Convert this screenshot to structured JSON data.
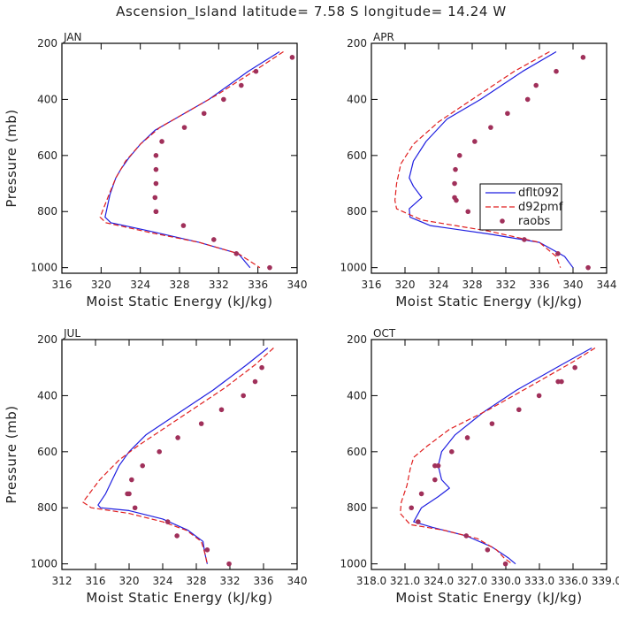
{
  "figure_title": "Ascension_Island  latitude= 7.58 S longitude= 14.24 W",
  "colors": {
    "dflt092": "#1f1fe0",
    "d92pmf": "#e01f1f",
    "raobs": "#a0305a",
    "frame": "#000000"
  },
  "chart_data": [
    {
      "type": "line",
      "panel": "JAN",
      "xlabel": "Moist Static Energy (kJ/kg)",
      "ylabel": "Pressure (mb)",
      "xlim": [
        316,
        340
      ],
      "ylim": [
        1020,
        200
      ],
      "xticks": [
        316,
        320,
        324,
        328,
        332,
        336,
        340
      ],
      "xtick_labels": [
        "316",
        "320",
        "324",
        "328",
        "332",
        "336",
        "340"
      ],
      "yticks": [
        200,
        400,
        600,
        800,
        1000
      ],
      "ytick_labels": [
        "200",
        "400",
        "600",
        "800",
        "1000"
      ],
      "series": [
        {
          "name": "dflt092",
          "style": "solid",
          "x": [
            338.2,
            335,
            331,
            327.5,
            325.5,
            324,
            322.8,
            322,
            321.5,
            321.3,
            320.9,
            320.4,
            321,
            325,
            330,
            334,
            335.2
          ],
          "y": [
            230,
            300,
            400,
            470,
            510,
            560,
            610,
            650,
            680,
            700,
            740,
            820,
            840,
            870,
            910,
            950,
            1000
          ]
        },
        {
          "name": "d92pmf",
          "style": "dashed",
          "x": [
            338.6,
            336,
            332,
            328.5,
            326,
            324,
            322.5,
            321.5,
            320.8,
            319.9,
            320.5,
            325,
            330,
            334,
            336.2
          ],
          "y": [
            230,
            290,
            380,
            450,
            500,
            560,
            620,
            680,
            740,
            820,
            840,
            875,
            910,
            950,
            1000
          ]
        },
        {
          "name": "raobs",
          "style": "marker",
          "x": [
            339.5,
            335.8,
            334.3,
            332.5,
            330.5,
            328.5,
            326.2,
            325.6,
            325.6,
            325.6,
            325.5,
            325.6,
            325.6,
            328.4,
            331.5,
            333.8,
            337.2
          ],
          "y": [
            250,
            300,
            350,
            400,
            450,
            500,
            550,
            600,
            650,
            700,
            750,
            800,
            800,
            850,
            900,
            950,
            1000
          ]
        }
      ]
    },
    {
      "type": "line",
      "panel": "APR",
      "xlabel": "Moist Static Energy (kJ/kg)",
      "ylabel": "",
      "xlim": [
        316,
        344
      ],
      "ylim": [
        1020,
        200
      ],
      "xticks": [
        316,
        320,
        324,
        328,
        332,
        336,
        340,
        344
      ],
      "xtick_labels": [
        "316",
        "320",
        "324",
        "328",
        "332",
        "336",
        "340",
        "344"
      ],
      "yticks": [
        200,
        400,
        600,
        800,
        1000
      ],
      "ytick_labels": [
        "200",
        "400",
        "600",
        "800",
        "1000"
      ],
      "legend": {
        "position": "center-right",
        "entries": [
          "dflt092",
          "d92pmf",
          "raobs"
        ]
      },
      "series": [
        {
          "name": "dflt092",
          "style": "solid",
          "x": [
            338,
            334,
            329,
            325,
            322.5,
            321,
            320.5,
            321,
            322,
            320.5,
            320.6,
            323,
            330,
            336,
            339,
            340
          ],
          "y": [
            230,
            300,
            400,
            470,
            550,
            620,
            680,
            710,
            750,
            790,
            820,
            850,
            880,
            910,
            960,
            1000
          ]
        },
        {
          "name": "d92pmf",
          "style": "dashed",
          "x": [
            337.2,
            333,
            328,
            324,
            321,
            319.5,
            319,
            318.8,
            319,
            322,
            330,
            336,
            338,
            338.5
          ],
          "y": [
            230,
            300,
            400,
            480,
            560,
            630,
            700,
            760,
            790,
            830,
            870,
            910,
            960,
            1000
          ]
        },
        {
          "name": "raobs",
          "style": "marker",
          "x": [
            341.2,
            338,
            335.6,
            334.6,
            332.2,
            330.2,
            328.3,
            326.5,
            326.0,
            325.9,
            325.9,
            326.1,
            327.5,
            331.2,
            334.2,
            338.2,
            341.8
          ],
          "y": [
            250,
            300,
            350,
            400,
            450,
            500,
            550,
            600,
            650,
            700,
            750,
            760,
            800,
            850,
            900,
            950,
            1000
          ]
        }
      ]
    },
    {
      "type": "line",
      "panel": "JUL",
      "xlabel": "Moist Static Energy (kJ/kg)",
      "ylabel": "Pressure (mb)",
      "xlim": [
        312,
        340
      ],
      "ylim": [
        1020,
        200
      ],
      "xticks": [
        312,
        316,
        320,
        324,
        328,
        332,
        336,
        340
      ],
      "xtick_labels": [
        "312",
        "316",
        "320",
        "324",
        "328",
        "332",
        "336",
        "340"
      ],
      "yticks": [
        200,
        400,
        600,
        800,
        1000
      ],
      "ytick_labels": [
        "200",
        "400",
        "600",
        "800",
        "1000"
      ],
      "series": [
        {
          "name": "dflt092",
          "style": "solid",
          "x": [
            336.5,
            334,
            330,
            326,
            322,
            320,
            318.8,
            318,
            317.2,
            316.3,
            316.6,
            320,
            324,
            327,
            328.8,
            329.0,
            329.3
          ],
          "y": [
            230,
            290,
            380,
            460,
            540,
            600,
            650,
            700,
            750,
            790,
            800,
            810,
            840,
            880,
            920,
            960,
            1000
          ]
        },
        {
          "name": "d92pmf",
          "style": "dashed",
          "x": [
            337.2,
            335,
            331.5,
            327.5,
            324,
            321,
            318.8,
            316.5,
            314.5,
            315.5,
            320,
            324,
            326.8,
            328.6,
            329.0,
            329.3
          ],
          "y": [
            230,
            290,
            370,
            450,
            520,
            580,
            630,
            700,
            780,
            800,
            820,
            850,
            880,
            920,
            960,
            1000
          ]
        },
        {
          "name": "raobs",
          "style": "marker",
          "x": [
            335.8,
            335.0,
            333.6,
            331.0,
            328.6,
            325.8,
            323.6,
            321.6,
            320.3,
            320.0,
            319.8,
            320.7,
            324.6,
            325.7,
            329.3,
            331.9
          ],
          "y": [
            300,
            350,
            400,
            450,
            500,
            550,
            600,
            650,
            700,
            750,
            750,
            800,
            850,
            900,
            950,
            1000
          ]
        }
      ]
    },
    {
      "type": "line",
      "panel": "OCT",
      "xlabel": "Moist Static Energy (kJ/kg)",
      "ylabel": "",
      "xlim": [
        318.03,
        339.03
      ],
      "ylim": [
        1020,
        200
      ],
      "xticks": [
        318.03,
        321.03,
        324.03,
        327.03,
        330.03,
        333.03,
        336.03,
        339.03
      ],
      "xtick_labels": [
        "318.0",
        "321.0",
        "324.0",
        "327.0",
        "330.0",
        "333.0",
        "336.0",
        "339.0"
      ],
      "yticks": [
        200,
        400,
        600,
        800,
        1000
      ],
      "ytick_labels": [
        "200",
        "400",
        "600",
        "800",
        "1000"
      ],
      "series": [
        {
          "name": "dflt092",
          "style": "solid",
          "x": [
            337.7,
            335,
            331,
            328,
            325.5,
            324.3,
            324.0,
            324.3,
            325.0,
            324.0,
            322.5,
            321.8,
            323.5,
            326.5,
            328.8,
            330.3,
            330.9
          ],
          "y": [
            230,
            290,
            380,
            460,
            540,
            600,
            650,
            700,
            730,
            760,
            800,
            850,
            870,
            900,
            940,
            980,
            1000
          ]
        },
        {
          "name": "d92pmf",
          "style": "dashed",
          "x": [
            338,
            336,
            332.5,
            328.5,
            325,
            323,
            321.8,
            321.5,
            321.2,
            320.7,
            320.6,
            321.5,
            324.5,
            327.5,
            329.2,
            329.9,
            330.6
          ],
          "y": [
            230,
            280,
            360,
            450,
            520,
            580,
            620,
            660,
            720,
            780,
            820,
            860,
            880,
            910,
            950,
            980,
            1000
          ]
        },
        {
          "name": "raobs",
          "style": "marker",
          "x": [
            336.2,
            335.0,
            334.7,
            333.0,
            331.2,
            328.8,
            326.6,
            325.2,
            324.0,
            323.7,
            323.7,
            322.5,
            321.6,
            322.2,
            326.5,
            328.4,
            330.0
          ],
          "y": [
            300,
            350,
            350,
            400,
            450,
            500,
            550,
            600,
            650,
            650,
            700,
            750,
            800,
            850,
            900,
            950,
            1000
          ]
        }
      ]
    }
  ]
}
